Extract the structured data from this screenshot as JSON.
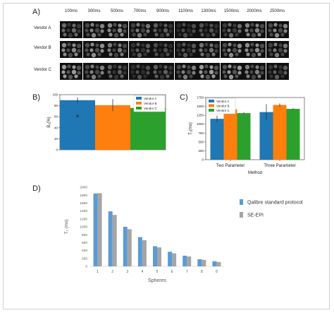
{
  "panel_labels": {
    "A": "A)",
    "B": "B)",
    "C": "C)",
    "D": "D)"
  },
  "panelA": {
    "timepoints": [
      "100ms",
      "300ms",
      "500ms",
      "700ms",
      "900ms",
      "1100ms",
      "1300ms",
      "1500ms",
      "2000ms",
      "2500ms"
    ],
    "vendors": [
      "Vendor A",
      "Vendor B",
      "Vendor C"
    ]
  },
  "chart_data": [
    {
      "id": "B",
      "type": "bar",
      "ylabel": "B₁(%)",
      "ylim": [
        0,
        100
      ],
      "yticks": [
        "0",
        "20",
        "40",
        "60",
        "80",
        "100"
      ],
      "categories": [
        "Vendor A",
        "Vendor B",
        "Vendor C"
      ],
      "values": [
        90,
        81,
        76
      ],
      "errors": [
        5,
        11,
        5
      ],
      "marker_x": {
        "category": "Vendor A",
        "value": 60
      },
      "colors": [
        "#1f77b4",
        "#ff7f0e",
        "#2ca02c"
      ],
      "legend": [
        "Vendor A",
        "Vendor B",
        "Vendor C"
      ],
      "legend_position": "top-right"
    },
    {
      "id": "C",
      "type": "bar",
      "xlabel": "Method",
      "ylabel": "T₁(ms)",
      "ylim": [
        0,
        1750
      ],
      "yticks": [
        "0",
        "250",
        "500",
        "750",
        "1000",
        "1250",
        "1500",
        "1750"
      ],
      "categories": [
        "Two Parameter",
        "Three Parameter"
      ],
      "series": [
        {
          "name": "Vendor A",
          "values": [
            1150,
            1340
          ],
          "errors": [
            90,
            220
          ],
          "color": "#1f77b4"
        },
        {
          "name": "Vendor B",
          "values": [
            1420,
            1540
          ],
          "errors": [
            25,
            45
          ],
          "color": "#ff7f0e"
        },
        {
          "name": "Vendor C",
          "values": [
            1310,
            1430
          ],
          "errors": [
            25,
            20
          ],
          "color": "#2ca02c"
        }
      ],
      "legend_position": "top-left"
    },
    {
      "id": "D",
      "type": "bar",
      "xlabel": "Spheres",
      "ylabel": "T₁ (ms)",
      "ylim": [
        0,
        2000
      ],
      "yticks": [
        "0",
        "200",
        "400",
        "600",
        "800",
        "1000",
        "1200",
        "1400",
        "1600",
        "1800",
        "2000"
      ],
      "categories": [
        "1",
        "2",
        "3",
        "4",
        "5",
        "6",
        "7",
        "8",
        "9"
      ],
      "series": [
        {
          "name": "Qalibre standard protocol",
          "values": [
            1840,
            1390,
            1000,
            740,
            510,
            370,
            270,
            180,
            130
          ],
          "color": "#5b9bd5"
        },
        {
          "name": "SE-EPI",
          "values": [
            1850,
            1300,
            940,
            660,
            480,
            330,
            250,
            165,
            110
          ],
          "color": "#a5a5a5"
        }
      ],
      "legend_position": "right"
    }
  ]
}
